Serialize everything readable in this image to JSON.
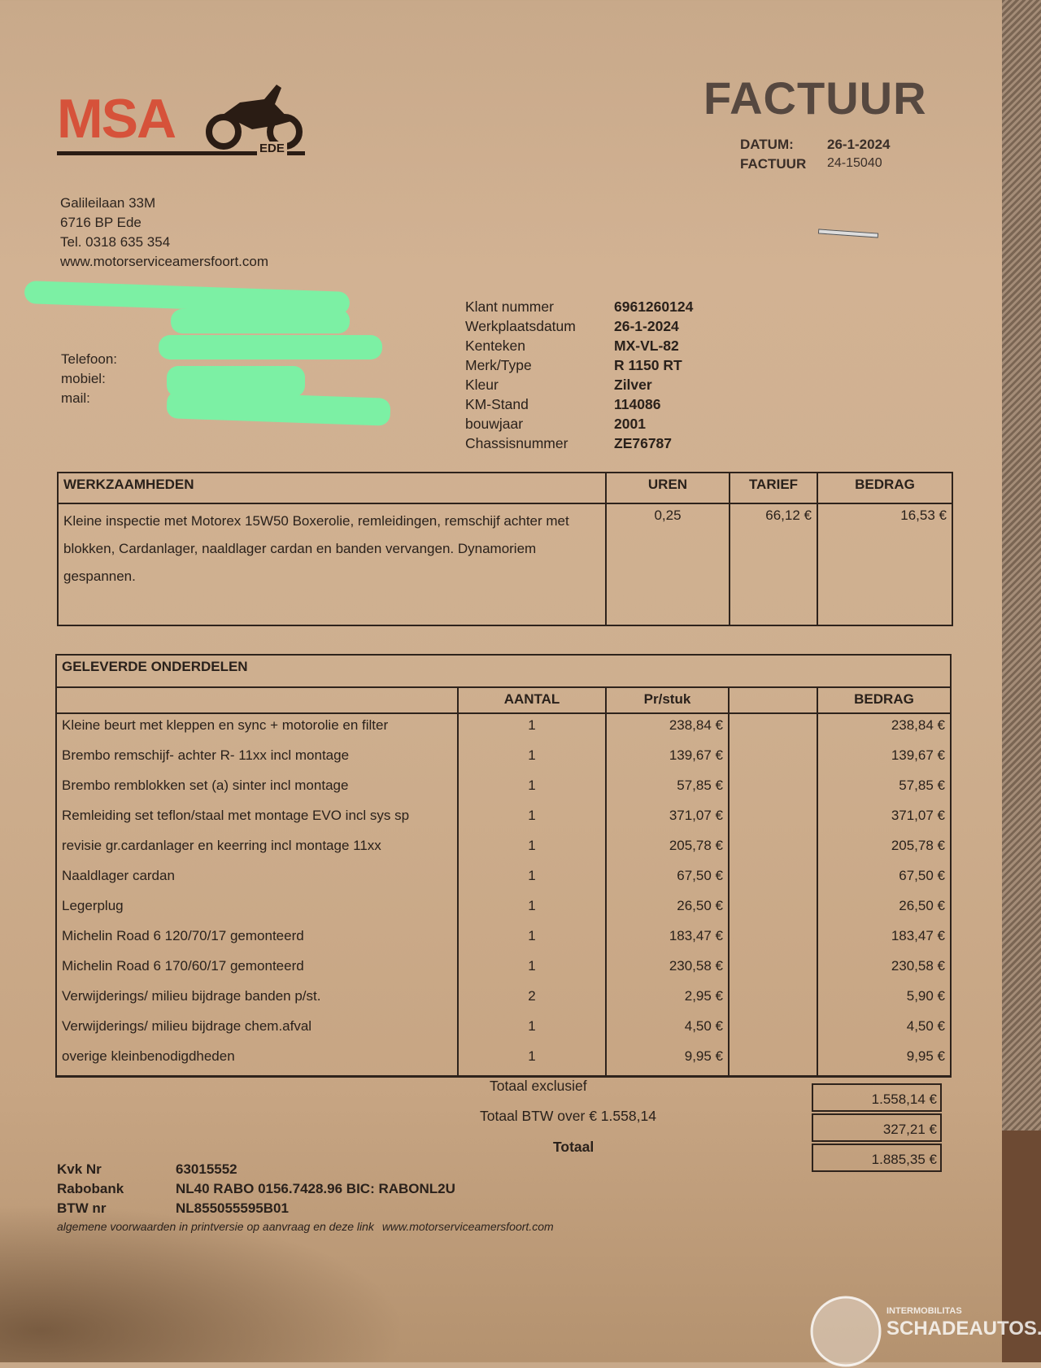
{
  "company": {
    "logo_text": "MSA",
    "logo_sub": "EDE",
    "address_lines": [
      "Galileilaan 33M",
      "6716 BP  Ede",
      "Tel. 0318 635 354"
    ],
    "website": "www.motorserviceamersfoort.com",
    "brand_color": "#d6523a"
  },
  "header": {
    "title": "FACTUUR",
    "date_label": "DATUM:",
    "date": "26-1-2024",
    "invoice_label": "FACTUUR",
    "invoice_number": "24-15040"
  },
  "customer": {
    "labels": [
      "Telefoon:",
      "mobiel:",
      "mail:"
    ]
  },
  "vehicle": [
    {
      "label": "Klant nummer",
      "value": "6961260124"
    },
    {
      "label": "Werkplaatsdatum",
      "value": "26-1-2024"
    },
    {
      "label": "Kenteken",
      "value": "MX-VL-82"
    },
    {
      "label": "Merk/Type",
      "value": "R 1150 RT"
    },
    {
      "label": "Kleur",
      "value": "Zilver"
    },
    {
      "label": "KM-Stand",
      "value": "114086"
    },
    {
      "label": "bouwjaar",
      "value": "2001"
    },
    {
      "label": "Chassisnummer",
      "value": "ZE76787"
    }
  ],
  "labor": {
    "headers": [
      "WERKZAAMHEDEN",
      "UREN",
      "TARIEF",
      "BEDRAG"
    ],
    "description": "Kleine inspectie met Motorex 15W50 Boxerolie, remleidingen, remschijf achter met blokken, Cardanlager, naaldlager cardan en banden vervangen. Dynamoriem gespannen.",
    "uren": "0,25",
    "tarief": "66,12 €",
    "bedrag": "16,53 €"
  },
  "parts": {
    "title": "GELEVERDE ONDERDELEN",
    "headers": [
      "",
      "AANTAL",
      "Pr/stuk",
      "",
      "BEDRAG"
    ],
    "rows": [
      [
        "Kleine beurt met kleppen en sync + motorolie en filter",
        "1",
        "238,84 €",
        "238,84 €"
      ],
      [
        "Brembo remschijf- achter R- 11xx incl montage",
        "1",
        "139,67 €",
        "139,67 €"
      ],
      [
        "Brembo remblokken set (a) sinter incl montage",
        "1",
        "57,85 €",
        "57,85 €"
      ],
      [
        "Remleiding set teflon/staal met montage EVO incl sys sp",
        "1",
        "371,07 €",
        "371,07 €"
      ],
      [
        "revisie gr.cardanlager en keerring incl montage 11xx",
        "1",
        "205,78 €",
        "205,78 €"
      ],
      [
        "Naaldlager cardan",
        "1",
        "67,50 €",
        "67,50 €"
      ],
      [
        "Legerplug",
        "1",
        "26,50 €",
        "26,50 €"
      ],
      [
        "Michelin Road 6 120/70/17 gemonteerd",
        "1",
        "183,47 €",
        "183,47 €"
      ],
      [
        "Michelin Road 6 170/60/17 gemonteerd",
        "1",
        "230,58 €",
        "230,58 €"
      ],
      [
        "Verwijderings/ milieu bijdrage banden p/st.",
        "2",
        "2,95 €",
        "5,90 €"
      ],
      [
        "Verwijderings/ milieu bijdrage chem.afval",
        "1",
        "4,50 €",
        "4,50 €"
      ],
      [
        "overige kleinbenodigdheden",
        "1",
        "9,95 €",
        "9,95 €"
      ]
    ]
  },
  "totals": {
    "excl_label": "Totaal exclusief",
    "excl": "1.558,14 €",
    "btw_label": "Totaal BTW over € 1.558,14",
    "btw": "327,21 €",
    "total_label": "Totaal",
    "total": "1.885,35 €"
  },
  "footer": {
    "kvk_label": "Kvk Nr",
    "kvk": "63015552",
    "bank_label": "Rabobank",
    "bank": "NL40 RABO 0156.7428.96  BIC: RABONL2U",
    "btw_label": "BTW nr",
    "btw": "NL855055595B01",
    "terms": "algemene voorwaarden in printversie op aanvraag en deze link",
    "terms_link": "www.motorserviceamersfoort.com"
  },
  "watermark": {
    "line1": "INTERMOBILITAS",
    "line2": "SCHADEAUTOS.NL"
  }
}
